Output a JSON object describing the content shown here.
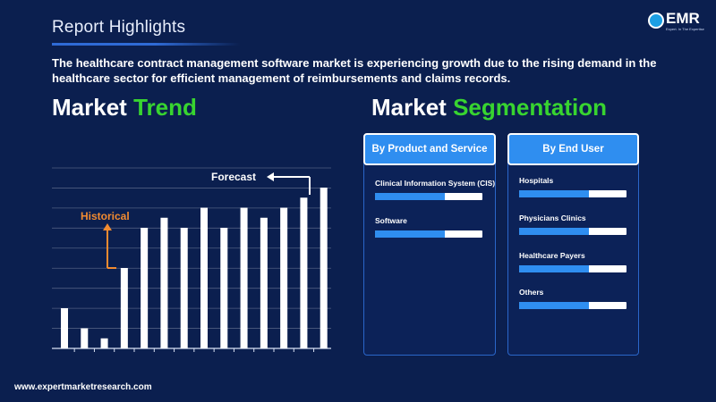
{
  "header": {
    "title": "Report Highlights"
  },
  "logo": {
    "text": "EMR",
    "tagline": "Expert. In The Expertise"
  },
  "summary": "The healthcare contract management software market is experiencing growth due to the rising demand in the healthcare sector for efficient management of reimbursements and claims records.",
  "market_trend": {
    "title_white": "Market",
    "title_green": "Trend"
  },
  "market_segmentation": {
    "title_white": "Market",
    "title_green": "Segmentation",
    "by_product": {
      "title": "By Product and Service",
      "items": [
        {
          "label": "Clinical Information System (CIS)",
          "share": 0.65
        },
        {
          "label": "Software",
          "share": 0.65
        }
      ]
    },
    "by_end_user": {
      "title": "By End User",
      "items": [
        {
          "label": "Hospitals",
          "share": 0.65
        },
        {
          "label": "Physicians Clinics",
          "share": 0.65
        },
        {
          "label": "Healthcare Payers",
          "share": 0.65
        },
        {
          "label": "Others",
          "share": 0.65
        }
      ]
    }
  },
  "chart_data": {
    "type": "bar",
    "title": "",
    "xlabel": "",
    "ylabel": "",
    "ylim": [
      0,
      8
    ],
    "grid": true,
    "values": [
      2,
      1,
      0.5,
      4,
      6,
      6.5,
      6,
      7,
      6,
      7,
      6.5,
      7,
      7.5,
      8
    ],
    "annotations": [
      {
        "text": "Historical",
        "color": "#f28b30"
      },
      {
        "text": "Forecast",
        "color": "#ffffff"
      }
    ]
  },
  "footer": {
    "url": "www.expertmarketresearch.com"
  },
  "colors": {
    "background": "#0b1f4f",
    "accent_green": "#38d430",
    "accent_blue": "#2f8ef0",
    "historical_orange": "#f28b30"
  }
}
